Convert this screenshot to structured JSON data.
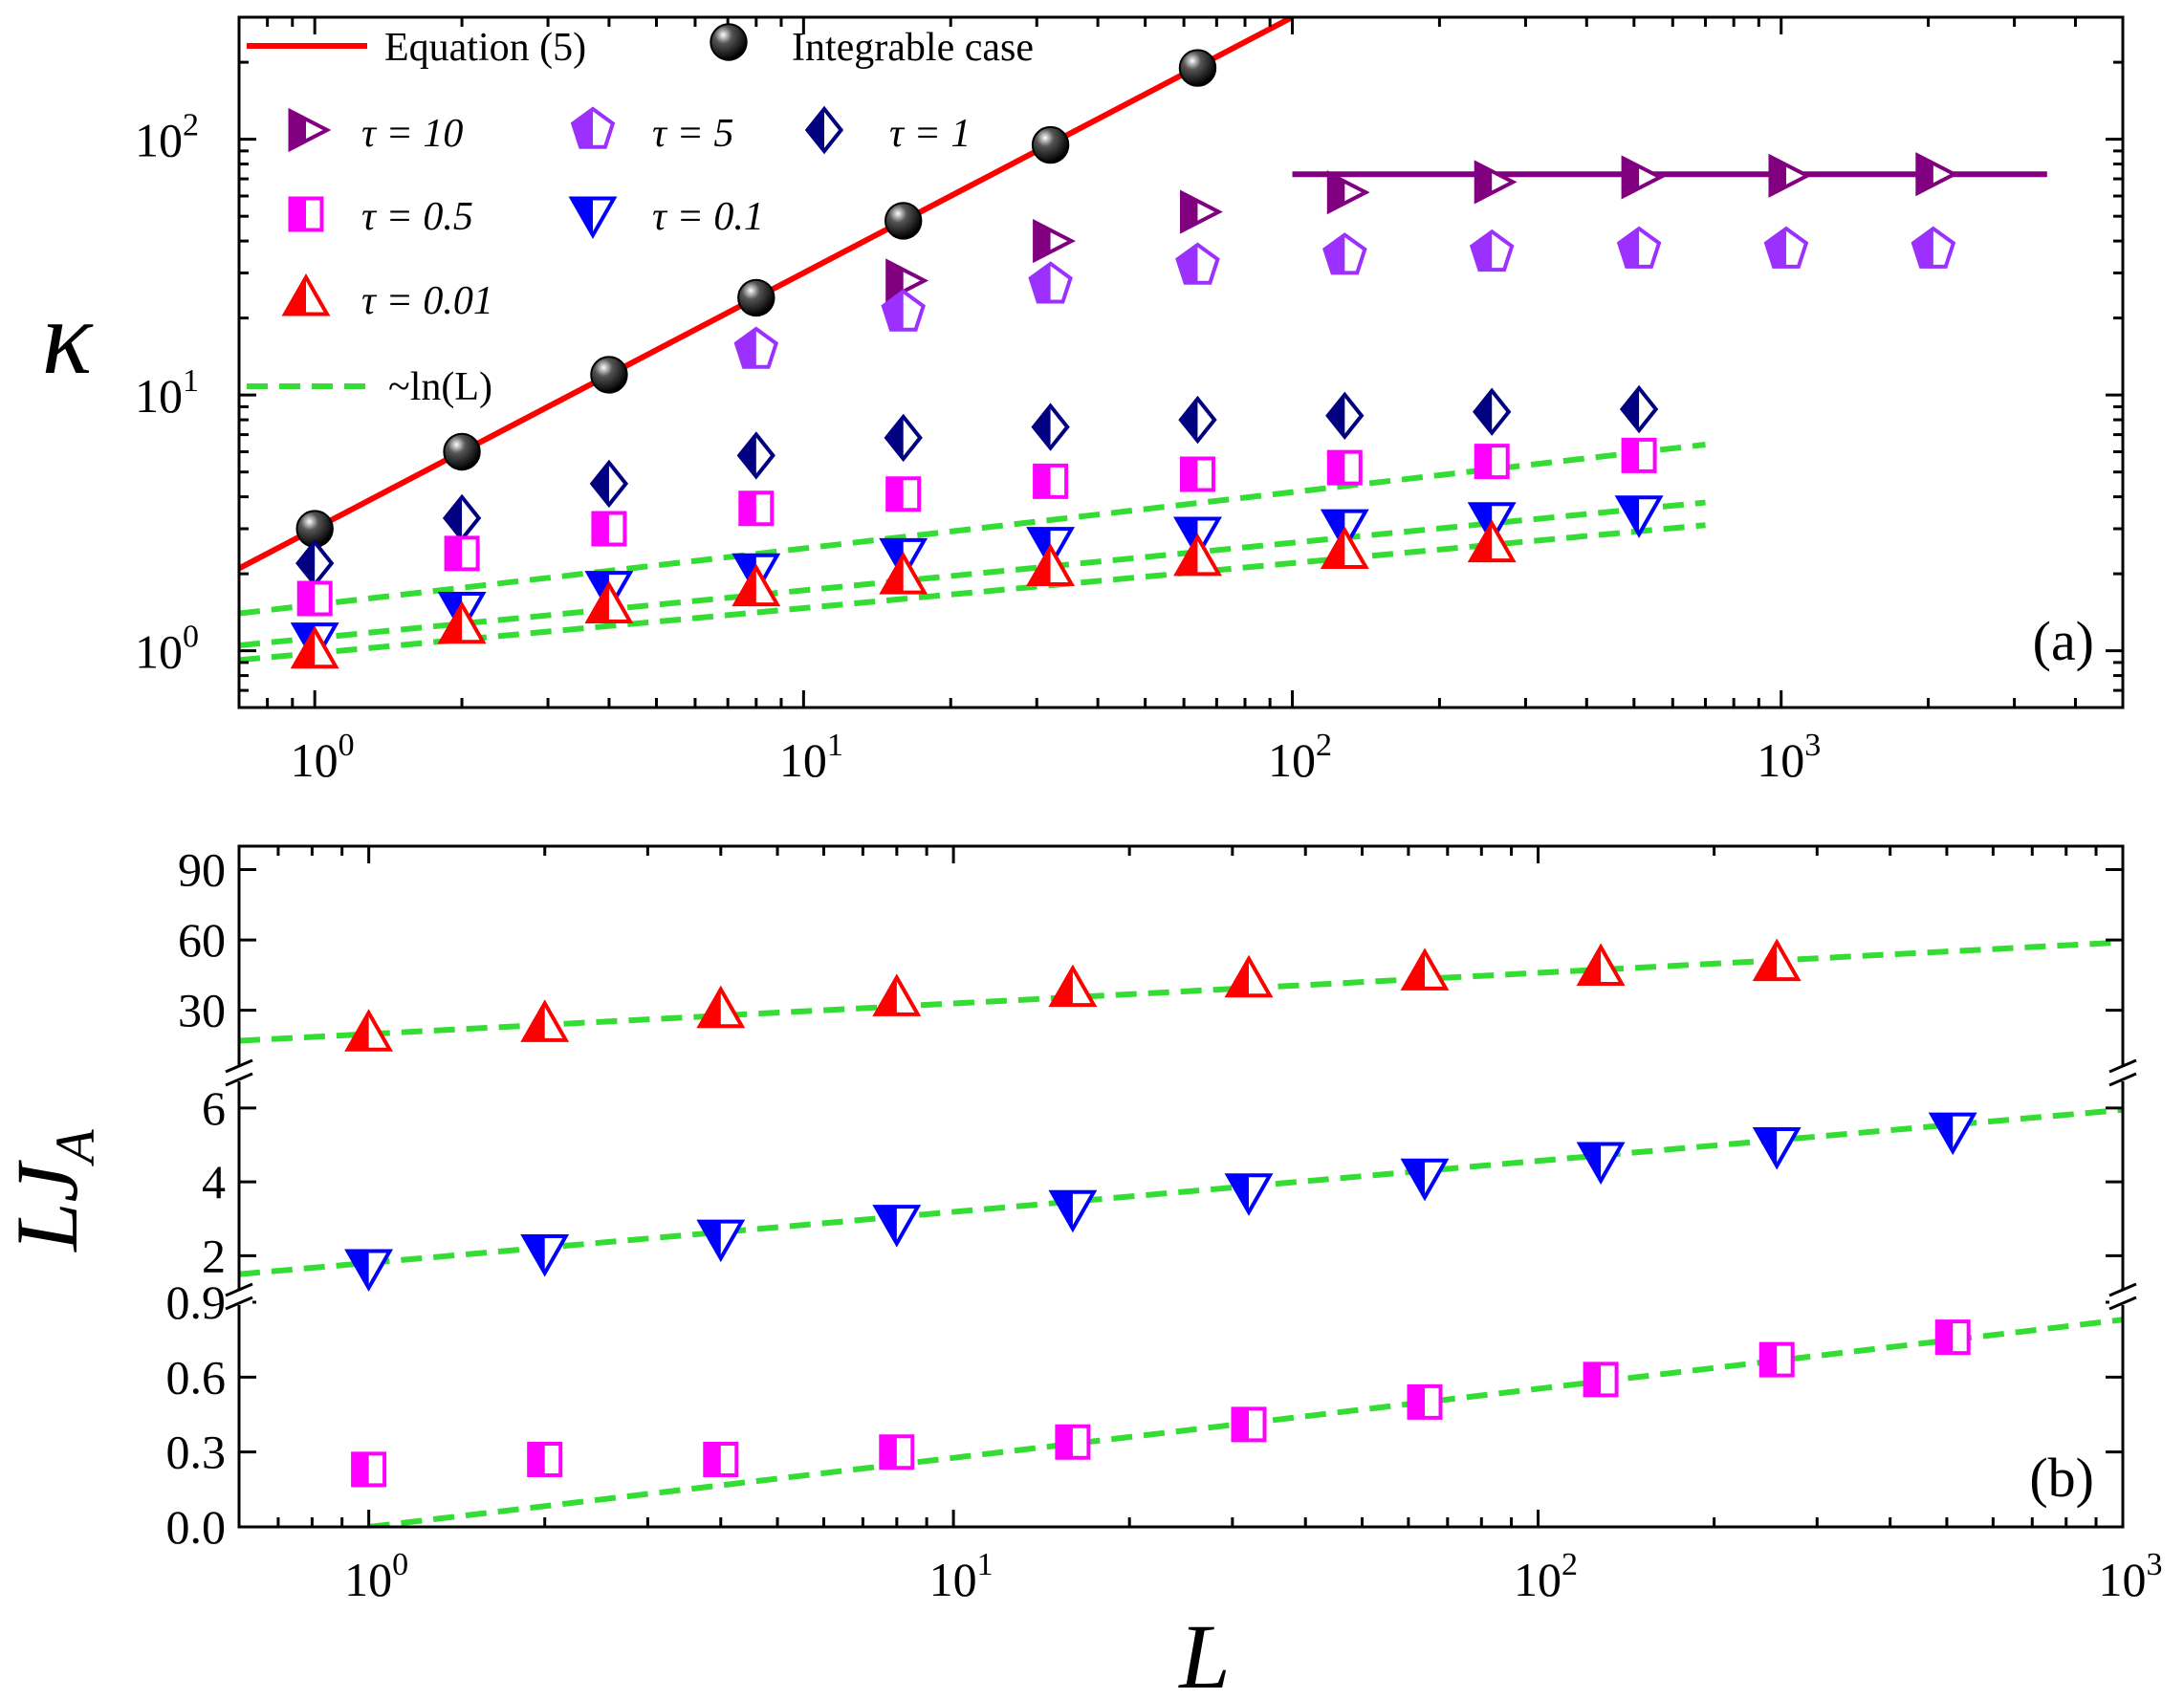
{
  "chart_data": [
    {
      "panel": "(a)",
      "type": "scatter",
      "xscale": "log",
      "yscale": "log",
      "xlim": [
        0.7,
        5000
      ],
      "ylim": [
        0.6,
        300
      ],
      "xlabel": "",
      "ylabel": "κ",
      "xticks": [
        {
          "value": 1,
          "base": "10",
          "exp": "0"
        },
        {
          "value": 10,
          "base": "10",
          "exp": "1"
        },
        {
          "value": 100,
          "base": "10",
          "exp": "2"
        },
        {
          "value": 1000,
          "base": "10",
          "exp": "3"
        }
      ],
      "yticks": [
        {
          "value": 1,
          "base": "10",
          "exp": "0"
        },
        {
          "value": 10,
          "base": "10",
          "exp": "1"
        },
        {
          "value": 100,
          "base": "10",
          "exp": "2"
        }
      ],
      "legend": {
        "equation_label": "Equation (5)",
        "integrable_label": "Integrable case",
        "tau10": "τ = 10",
        "tau5": "τ = 5",
        "tau1": "τ = 1",
        "tau05": "τ = 0.5",
        "tau01": "τ = 0.1",
        "tau001": "τ = 0.01",
        "ln_label": "~ln(L)"
      },
      "series": [
        {
          "name": "Integrable case",
          "marker": "sphere",
          "color": "#000000",
          "x": [
            1,
            2,
            4,
            8,
            16,
            32,
            64
          ],
          "y": [
            3.0,
            6.0,
            12.0,
            24.0,
            48.0,
            95.0,
            190.0
          ]
        },
        {
          "name": "τ = 10",
          "marker": "triangle-right",
          "color": "#800080",
          "x": [
            16,
            32,
            64,
            128,
            256,
            512,
            1024,
            2048
          ],
          "y": [
            28,
            40,
            52,
            62,
            68,
            71,
            72,
            73
          ]
        },
        {
          "name": "τ = 5",
          "marker": "pentagon",
          "color": "#9b30ff",
          "x": [
            8,
            16,
            32,
            64,
            128,
            256,
            512,
            1024,
            2048
          ],
          "y": [
            15,
            21,
            27,
            32,
            35,
            36,
            37,
            37,
            37
          ]
        },
        {
          "name": "τ = 1",
          "marker": "diamond",
          "color": "#000080",
          "x": [
            1,
            2,
            4,
            8,
            16,
            32,
            64,
            128,
            256,
            512
          ],
          "y": [
            2.2,
            3.3,
            4.5,
            5.8,
            6.8,
            7.5,
            8.0,
            8.3,
            8.6,
            8.8
          ]
        },
        {
          "name": "τ = 0.5",
          "marker": "square",
          "color": "#ff00ff",
          "x": [
            1,
            2,
            4,
            8,
            16,
            32,
            64,
            128,
            256,
            512
          ],
          "y": [
            1.6,
            2.4,
            3.0,
            3.6,
            4.1,
            4.6,
            4.9,
            5.2,
            5.5,
            5.8
          ]
        },
        {
          "name": "τ = 0.1",
          "marker": "triangle-down",
          "color": "#0000ff",
          "x": [
            1,
            2,
            4,
            8,
            16,
            32,
            64,
            128,
            256,
            512
          ],
          "y": [
            1.1,
            1.45,
            1.75,
            2.05,
            2.35,
            2.6,
            2.85,
            3.05,
            3.25,
            3.45
          ]
        },
        {
          "name": "τ = 0.01",
          "marker": "triangle-up",
          "color": "#ff0000",
          "x": [
            1,
            2,
            4,
            8,
            16,
            32,
            64,
            128,
            256
          ],
          "y": [
            1.0,
            1.25,
            1.5,
            1.75,
            1.95,
            2.1,
            2.3,
            2.45,
            2.6
          ]
        }
      ],
      "lines": [
        {
          "name": "Equation (5)",
          "style": "solid",
          "color": "#ff0000",
          "x": [
            0.7,
            100
          ],
          "y": [
            2.1,
            300
          ]
        },
        {
          "name": "plateau",
          "style": "solid",
          "color": "#800080",
          "x": [
            100,
            3500
          ],
          "y": [
            73,
            73
          ]
        },
        {
          "name": "~ln(L) fit 1",
          "style": "dashed",
          "color": "#33dd33",
          "x": [
            0.7,
            700
          ],
          "y": [
            1.4,
            6.4
          ]
        },
        {
          "name": "~ln(L) fit 2",
          "style": "dashed",
          "color": "#33dd33",
          "x": [
            0.7,
            700
          ],
          "y": [
            1.05,
            3.8
          ]
        },
        {
          "name": "~ln(L) fit 3",
          "style": "dashed",
          "color": "#33dd33",
          "x": [
            0.7,
            700
          ],
          "y": [
            0.92,
            3.1
          ]
        }
      ]
    },
    {
      "panel": "(b)",
      "type": "scatter",
      "xscale": "log",
      "yscale": "broken-linear",
      "xlim": [
        0.6,
        1000
      ],
      "xlabel": "L",
      "ylabel": "LJ",
      "ylabel_sub": "A",
      "xticks": [
        {
          "value": 1,
          "base": "10",
          "exp": "0"
        },
        {
          "value": 10,
          "base": "10",
          "exp": "1"
        },
        {
          "value": 100,
          "base": "10",
          "exp": "2"
        },
        {
          "value": 1000,
          "base": "10",
          "exp": "3"
        }
      ],
      "segments": [
        {
          "ylim": [
            0,
            0.9
          ],
          "ticks": [
            "0.0",
            "0.3",
            "0.6",
            "0.9"
          ],
          "tick_values": [
            0,
            0.3,
            0.6,
            0.9
          ],
          "series": {
            "name": "τ = 0.5",
            "marker": "square",
            "color": "#ff00ff",
            "x": [
              1,
              2,
              4,
              8,
              16,
              32,
              64,
              128,
              256,
              512
            ],
            "y": [
              0.23,
              0.27,
              0.27,
              0.3,
              0.34,
              0.41,
              0.5,
              0.59,
              0.67,
              0.76
            ]
          },
          "fit": {
            "x": [
              1,
              1000
            ],
            "y": [
              0.0,
              0.83
            ]
          }
        },
        {
          "ylim": [
            1.0,
            6.8
          ],
          "ticks": [
            "2",
            "4",
            "6"
          ],
          "tick_values": [
            2,
            4,
            6
          ],
          "series": {
            "name": "τ = 0.1",
            "marker": "triangle-down",
            "color": "#0000ff",
            "x": [
              1,
              2,
              4,
              8,
              16,
              32,
              64,
              128,
              256,
              512
            ],
            "y": [
              1.7,
              2.1,
              2.5,
              2.9,
              3.3,
              3.75,
              4.15,
              4.6,
              5.0,
              5.4
            ]
          },
          "fit": {
            "x": [
              0.6,
              1000
            ],
            "y": [
              1.5,
              5.95
            ]
          }
        },
        {
          "ylim": [
            5,
            100
          ],
          "ticks": [
            "30",
            "60",
            "90"
          ],
          "tick_values": [
            30,
            60,
            90
          ],
          "series": {
            "name": "τ = 0.01",
            "marker": "triangle-up",
            "color": "#ff0000",
            "x": [
              1,
              2,
              4,
              8,
              16,
              32,
              64,
              128,
              256
            ],
            "y": [
              20,
              24,
              30,
              35,
              39,
              43,
              46,
              48,
              50
            ]
          },
          "fit": {
            "x": [
              0.6,
              1000
            ],
            "y": [
              17,
              59
            ]
          }
        }
      ]
    }
  ]
}
